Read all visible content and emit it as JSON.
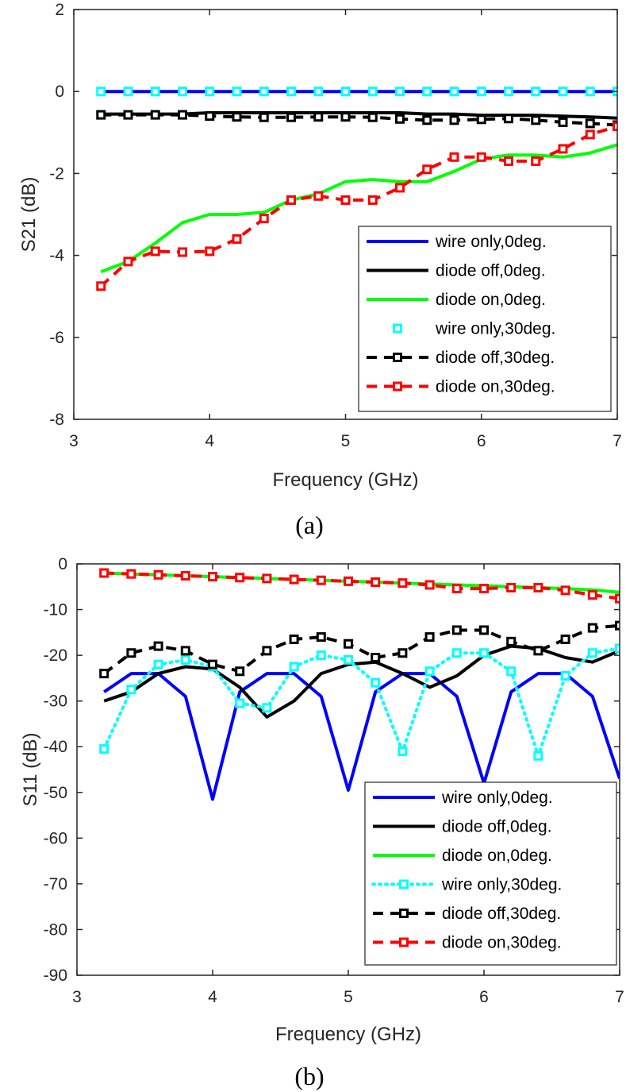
{
  "chart_data": [
    {
      "type": "line",
      "panel_caption": "(a)",
      "xlabel": "Frequency (GHz)",
      "ylabel": "S21 (dB)",
      "xlim": [
        3,
        7
      ],
      "ylim": [
        -8,
        2
      ],
      "xticks": [
        3,
        4,
        5,
        6,
        7
      ],
      "yticks": [
        -8,
        -6,
        -4,
        -2,
        0,
        2
      ],
      "grid": false,
      "legend_position": "bottom-right",
      "x": [
        3.2,
        3.4,
        3.6,
        3.8,
        4.0,
        4.2,
        4.4,
        4.6,
        4.8,
        5.0,
        5.2,
        5.4,
        5.6,
        5.8,
        6.0,
        6.2,
        6.4,
        6.6,
        6.8,
        7.0
      ],
      "series": [
        {
          "name": "wire only,0deg.",
          "color": "#0000ff",
          "line": "solid",
          "marker": "none",
          "values": [
            0,
            0,
            0,
            0,
            0,
            0,
            0,
            0,
            0,
            0,
            0,
            0,
            0,
            0,
            0,
            0,
            0,
            0,
            0,
            0
          ]
        },
        {
          "name": "diode off,0deg.",
          "color": "#000000",
          "line": "solid",
          "marker": "none",
          "values": [
            -0.55,
            -0.55,
            -0.55,
            -0.55,
            -0.52,
            -0.52,
            -0.52,
            -0.52,
            -0.52,
            -0.52,
            -0.52,
            -0.52,
            -0.55,
            -0.55,
            -0.58,
            -0.58,
            -0.58,
            -0.6,
            -0.62,
            -0.65
          ]
        },
        {
          "name": "diode on,0deg.",
          "color": "#00ff00",
          "line": "solid",
          "marker": "none",
          "values": [
            -4.4,
            -4.15,
            -3.7,
            -3.2,
            -3.0,
            -3.0,
            -2.95,
            -2.65,
            -2.5,
            -2.2,
            -2.15,
            -2.2,
            -2.2,
            -1.95,
            -1.65,
            -1.55,
            -1.55,
            -1.6,
            -1.5,
            -1.3
          ]
        },
        {
          "name": "wire only,30deg.",
          "color": "#00ffff",
          "line": "none",
          "marker": "square",
          "values": [
            0,
            0,
            0,
            0,
            0,
            0,
            0,
            0,
            0,
            0,
            0,
            0,
            0,
            0,
            0,
            0,
            0,
            0,
            0,
            0
          ]
        },
        {
          "name": "diode off,30deg.",
          "color": "#000000",
          "line": "dashed",
          "marker": "square",
          "values": [
            -0.57,
            -0.57,
            -0.57,
            -0.57,
            -0.6,
            -0.62,
            -0.63,
            -0.63,
            -0.62,
            -0.62,
            -0.63,
            -0.67,
            -0.7,
            -0.7,
            -0.68,
            -0.66,
            -0.7,
            -0.75,
            -0.78,
            -0.82
          ]
        },
        {
          "name": "diode on,30deg.",
          "color": "#ff0000",
          "line": "dashed",
          "marker": "square",
          "values": [
            -4.75,
            -4.15,
            -3.9,
            -3.92,
            -3.9,
            -3.6,
            -3.1,
            -2.65,
            -2.55,
            -2.65,
            -2.65,
            -2.35,
            -1.9,
            -1.6,
            -1.6,
            -1.7,
            -1.7,
            -1.4,
            -1.05,
            -0.85
          ]
        }
      ]
    },
    {
      "type": "line",
      "panel_caption": "(b)",
      "xlabel": "Frequency (GHz)",
      "ylabel": "S11 (dB)",
      "xlim": [
        3,
        7
      ],
      "ylim": [
        -90,
        0
      ],
      "xticks": [
        3,
        4,
        5,
        6,
        7
      ],
      "yticks": [
        -90,
        -80,
        -70,
        -60,
        -50,
        -40,
        -30,
        -20,
        -10,
        0
      ],
      "grid": false,
      "legend_position": "bottom-right",
      "x": [
        3.2,
        3.4,
        3.6,
        3.8,
        4.0,
        4.2,
        4.4,
        4.6,
        4.8,
        5.0,
        5.2,
        5.4,
        5.6,
        5.8,
        6.0,
        6.2,
        6.4,
        6.6,
        6.8,
        7.0
      ],
      "series": [
        {
          "name": "wire only,0deg.",
          "color": "#0000ff",
          "line": "solid",
          "marker": "none",
          "values": [
            -28,
            -24,
            -24,
            -29,
            -51.5,
            -28,
            -24,
            -24,
            -29,
            -49.5,
            -28,
            -24,
            -24,
            -29,
            -48,
            -28,
            -24,
            -24,
            -29,
            -47
          ]
        },
        {
          "name": "diode off,0deg.",
          "color": "#000000",
          "line": "solid",
          "marker": "none",
          "values": [
            -30,
            -28,
            -24,
            -22.5,
            -23,
            -27,
            -33.5,
            -30,
            -24,
            -22,
            -21.5,
            -24,
            -27,
            -24.5,
            -20,
            -18,
            -18.5,
            -20.5,
            -21.5,
            -19
          ]
        },
        {
          "name": "diode on,0deg.",
          "color": "#00ff00",
          "line": "solid",
          "marker": "none",
          "values": [
            -2,
            -2.2,
            -2.4,
            -2.6,
            -2.8,
            -3.0,
            -3.2,
            -3.4,
            -3.6,
            -3.8,
            -4.0,
            -4.2,
            -4.4,
            -4.6,
            -4.8,
            -5.0,
            -5.2,
            -5.4,
            -5.7,
            -6.2
          ]
        },
        {
          "name": "wire only,30deg.",
          "color": "#00ffff",
          "line": "dotted",
          "marker": "square",
          "values": [
            -40.5,
            -27.5,
            -22,
            -21,
            -22.5,
            -30.5,
            -31.5,
            -22.5,
            -20,
            -21,
            -26,
            -41,
            -23.5,
            -19.5,
            -19.5,
            -23.5,
            -42,
            -24.5,
            -19.5,
            -18.5
          ]
        },
        {
          "name": "diode off,30deg.",
          "color": "#000000",
          "line": "dashed",
          "marker": "square",
          "values": [
            -24,
            -19.5,
            -18,
            -19,
            -22,
            -23.5,
            -19,
            -16.5,
            -16,
            -17.5,
            -20.5,
            -19.5,
            -16,
            -14.5,
            -14.5,
            -17,
            -19,
            -16.5,
            -14,
            -13.5
          ]
        },
        {
          "name": "diode on,30deg.",
          "color": "#ff0000",
          "line": "dashed",
          "marker": "square",
          "values": [
            -2,
            -2.2,
            -2.4,
            -2.6,
            -2.8,
            -3.0,
            -3.2,
            -3.4,
            -3.6,
            -3.8,
            -4.0,
            -4.2,
            -4.6,
            -5.4,
            -5.4,
            -5.2,
            -5.2,
            -5.8,
            -6.8,
            -7.6
          ]
        }
      ]
    }
  ]
}
